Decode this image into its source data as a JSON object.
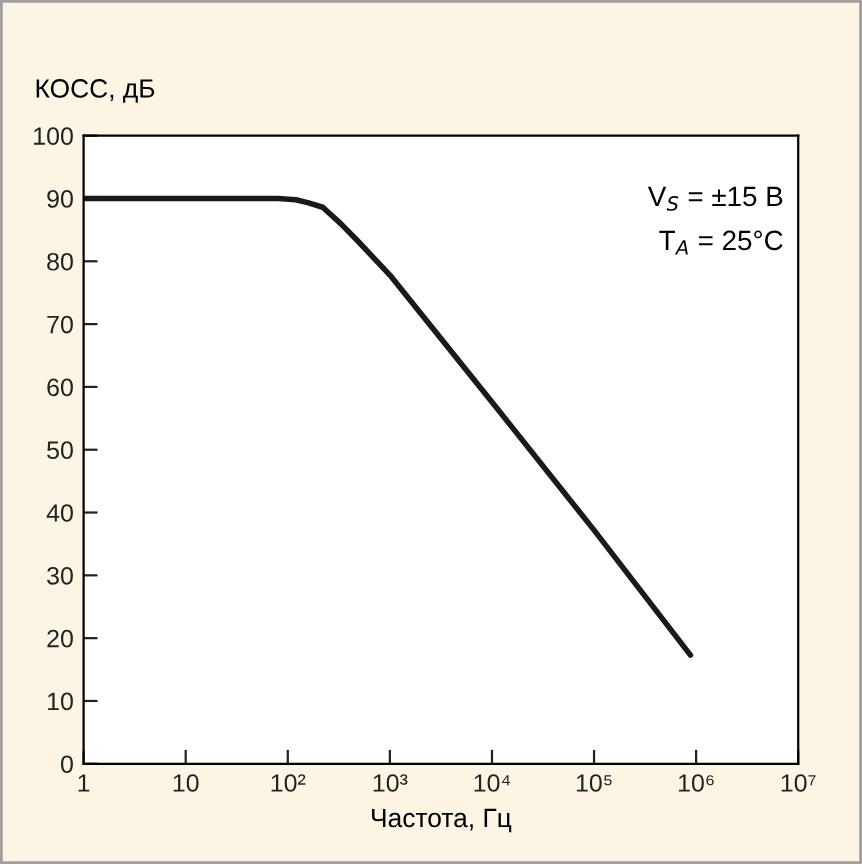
{
  "chart_data": {
    "type": "line",
    "xlabel": "Частота, Гц",
    "ylabel": "КОСС, дБ",
    "log": "x",
    "grid": false,
    "marker": "none",
    "line_style": "solid",
    "xlim": [
      1,
      10000000
    ],
    "ylim": [
      0,
      100
    ],
    "xticks": [
      1,
      10,
      {
        "value": 100,
        "label": "10²"
      },
      {
        "value": 1000,
        "label": "10³"
      },
      {
        "value": 10000,
        "label": "10⁴"
      },
      {
        "value": 100000,
        "label": "10⁵"
      },
      {
        "value": 1000000,
        "label": "10⁶"
      },
      {
        "value": 10000000,
        "label": "10⁷"
      }
    ],
    "yticks": [
      0,
      10,
      20,
      30,
      40,
      50,
      60,
      70,
      80,
      90,
      100
    ],
    "x": [
      1,
      80,
      120,
      160,
      220,
      330,
      480,
      1000,
      10000,
      100000,
      880000
    ],
    "series": [
      {
        "color": "#1a1a1a",
        "values": [
          90,
          90,
          89.8,
          89.3,
          88.6,
          86,
          83.3,
          77.8,
          57.6,
          37.2,
          17.3
        ]
      }
    ],
    "annotations": [
      "V$_{S}$ = ±15 В",
      "T$_{A}$ = 25°C"
    ]
  }
}
